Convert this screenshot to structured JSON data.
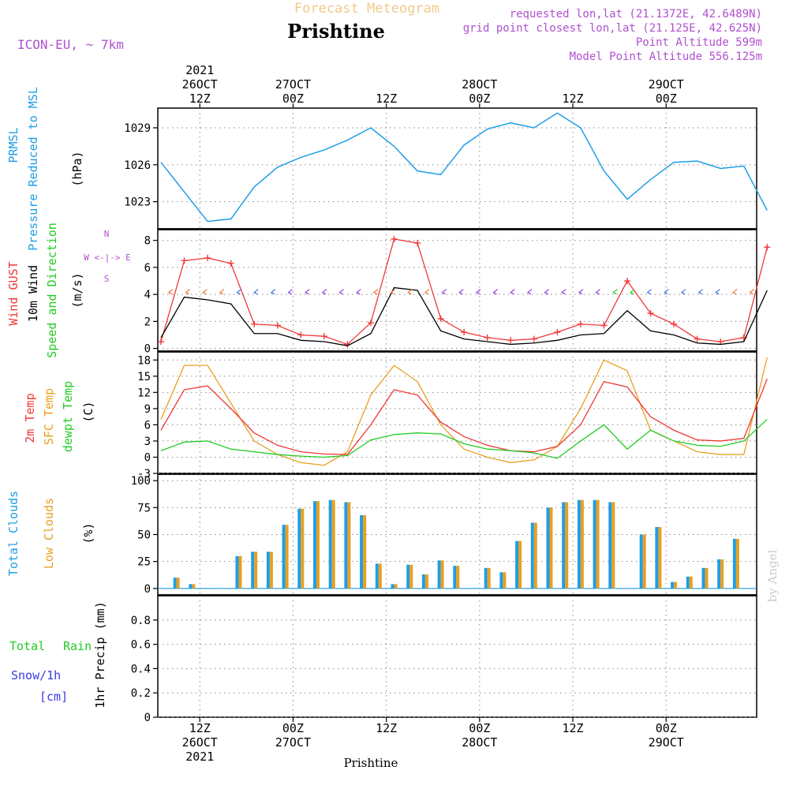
{
  "header": {
    "subtitle": "Forecast Meteogram",
    "title": "Prishtine",
    "model": "ICON-EU, ~ 7km",
    "requested": "requested lon,lat (21.1372E, 42.6489N)",
    "gridpoint": "grid point closest lon,lat (21.125E, 42.625N)",
    "point_alt": "Point Altitude 599m",
    "model_alt": "Model Point Altitude 556.125m",
    "watermark": "by Angel",
    "footer": "Prishtine"
  },
  "colors": {
    "pressure": "#1e9ee6",
    "gust": "#f03838",
    "wind": "#000000",
    "temp2m": "#f03838",
    "sfc": "#e8a020",
    "dew": "#22cc22",
    "total_cloud": "#1e9ee6",
    "low_cloud": "#e8a020",
    "rain": "#22cc22",
    "snow": "#3a3ae8",
    "meta": "#b050d0"
  },
  "axis_labels": {
    "pressure": [
      "PRMSL",
      "Pressure Reduced to MSL",
      "(hPa)"
    ],
    "wind": [
      "Wind GUST",
      "10m Wind",
      "Speed and Direction",
      "(m/s)"
    ],
    "compass": [
      "N",
      "W <-|-> E",
      "S"
    ],
    "temp": [
      "2m Temp",
      "SFC Temp",
      "dewpt Temp",
      "(C)"
    ],
    "cloud": [
      "Total Clouds",
      "Low Clouds",
      "(%)"
    ],
    "precip": [
      "Total",
      "Rain",
      "Snow/1h",
      "[cm]",
      "1hr Precip (mm)"
    ]
  },
  "time_axis": {
    "top": [
      [
        "2021",
        "26OCT",
        "12Z"
      ],
      [
        "27OCT",
        "00Z"
      ],
      [
        "12Z"
      ],
      [
        "28OCT",
        "00Z"
      ],
      [
        "12Z"
      ],
      [
        "29OCT",
        "00Z"
      ]
    ],
    "bottom": [
      [
        "12Z",
        "26OCT",
        "2021"
      ],
      [
        "00Z",
        "27OCT"
      ],
      [
        "12Z"
      ],
      [
        "00Z",
        "28OCT"
      ],
      [
        "12Z"
      ],
      [
        "00Z",
        "29OCT"
      ]
    ]
  },
  "chart_data": [
    {
      "type": "line",
      "title": "PRMSL Pressure Reduced to MSL",
      "ylabel": "(hPa)",
      "ylim": [
        1020.8,
        1030.6
      ],
      "yticks": [
        1023,
        1026,
        1029
      ],
      "x": [
        0,
        3,
        6,
        9,
        12,
        15,
        18,
        21,
        24,
        27,
        30,
        33,
        36,
        39,
        42,
        45,
        48,
        51,
        54,
        57,
        60,
        63,
        66,
        69,
        72,
        75,
        78
      ],
      "series": [
        {
          "name": "PRMSL",
          "values": [
            1026.2,
            1023.8,
            1021.4,
            1021.6,
            1024.2,
            1025.8,
            1026.6,
            1027.2,
            1028.0,
            1029.0,
            1027.5,
            1025.5,
            1025.2,
            1027.6,
            1028.9,
            1029.4,
            1029.0,
            1030.2,
            1029.0,
            1025.5,
            1023.2,
            1024.8,
            1026.2,
            1026.3,
            1025.7,
            1025.9,
            1022.3
          ]
        }
      ],
      "grid": true
    },
    {
      "type": "line",
      "title": "Wind GUST / 10m Wind Speed and Direction",
      "ylabel": "(m/s)",
      "ylim": [
        -0.2,
        8.8
      ],
      "yticks": [
        0,
        2,
        4,
        6,
        8
      ],
      "x": [
        0,
        3,
        6,
        9,
        12,
        15,
        18,
        21,
        24,
        27,
        30,
        33,
        36,
        39,
        42,
        45,
        48,
        51,
        54,
        57,
        60,
        63,
        66,
        69,
        72,
        75,
        78
      ],
      "series": [
        {
          "name": "Wind GUST",
          "values": [
            0.5,
            6.5,
            6.7,
            6.3,
            1.8,
            1.7,
            1.0,
            0.9,
            0.3,
            1.9,
            8.1,
            7.8,
            2.2,
            1.2,
            0.8,
            0.6,
            0.7,
            1.2,
            1.8,
            1.7,
            5.0,
            2.6,
            1.8,
            0.7,
            0.5,
            0.8,
            7.5
          ]
        },
        {
          "name": "10m Wind",
          "values": [
            0.8,
            3.8,
            3.6,
            3.3,
            1.1,
            1.1,
            0.6,
            0.5,
            0.2,
            1.1,
            4.5,
            4.3,
            1.3,
            0.7,
            0.5,
            0.3,
            0.4,
            0.6,
            1.0,
            1.1,
            2.8,
            1.3,
            1.0,
            0.4,
            0.3,
            0.5,
            4.3
          ]
        }
      ],
      "grid": true
    },
    {
      "type": "line",
      "title": "2m Temp / SFC Temp / dewpt Temp",
      "ylabel": "(C)",
      "ylim": [
        -3,
        19.5
      ],
      "yticks": [
        -3,
        0,
        3,
        6,
        9,
        12,
        15,
        18
      ],
      "x": [
        0,
        3,
        6,
        9,
        12,
        15,
        18,
        21,
        24,
        27,
        30,
        33,
        36,
        39,
        42,
        45,
        48,
        51,
        54,
        57,
        60,
        63,
        66,
        69,
        72,
        75,
        78
      ],
      "series": [
        {
          "name": "2m Temp",
          "values": [
            5.0,
            12.5,
            13.2,
            9.0,
            4.5,
            2.2,
            1.0,
            0.6,
            0.5,
            6.0,
            12.5,
            11.5,
            6.5,
            3.8,
            2.2,
            1.2,
            1.0,
            2.0,
            6.0,
            14.0,
            13.0,
            7.5,
            5.0,
            3.2,
            3.0,
            3.5,
            14.5
          ]
        },
        {
          "name": "SFC Temp",
          "values": [
            7.0,
            17.0,
            17.0,
            10.0,
            3.0,
            0.5,
            -1.0,
            -1.5,
            1.0,
            11.5,
            17.0,
            14.0,
            6.0,
            1.5,
            0.0,
            -1.0,
            -0.5,
            2.0,
            9.0,
            18.0,
            16.0,
            5.0,
            3.0,
            1.0,
            0.5,
            0.5,
            18.5
          ]
        },
        {
          "name": "dewpt Temp",
          "values": [
            1.2,
            2.8,
            3.0,
            1.5,
            1.0,
            0.5,
            0.2,
            0.0,
            0.3,
            3.2,
            4.2,
            4.5,
            4.3,
            2.5,
            1.5,
            1.2,
            0.8,
            -0.2,
            3.0,
            6.0,
            1.5,
            5.0,
            3.0,
            2.2,
            2.0,
            3.0,
            7.0
          ]
        }
      ],
      "grid": true
    },
    {
      "type": "bar",
      "title": "Total Clouds / Low Clouds",
      "ylabel": "(%)",
      "ylim": [
        -6,
        106
      ],
      "yticks": [
        0,
        25,
        50,
        75,
        100
      ],
      "x": [
        1,
        2,
        5,
        6,
        7,
        8,
        9,
        10,
        11,
        12,
        13,
        14,
        15,
        16,
        17,
        18,
        19,
        21,
        22,
        23,
        24,
        25,
        26,
        27,
        28,
        29,
        31,
        32,
        33,
        34,
        35,
        36,
        37
      ],
      "series": [
        {
          "name": "Total Clouds",
          "values": [
            10,
            4,
            30,
            34,
            34,
            59,
            74,
            81,
            82,
            80,
            68,
            23,
            4,
            22,
            13,
            26,
            21,
            19,
            15,
            44,
            61,
            75,
            80,
            82,
            82,
            80,
            50,
            57,
            6,
            11,
            19,
            27,
            46
          ]
        },
        {
          "name": "Low Clouds",
          "values": [
            10,
            4,
            30,
            34,
            34,
            59,
            74,
            81,
            82,
            80,
            68,
            23,
            4,
            22,
            13,
            26,
            21,
            19,
            15,
            44,
            61,
            75,
            80,
            82,
            82,
            80,
            50,
            57,
            6,
            11,
            19,
            27,
            46
          ]
        }
      ],
      "grid": true
    },
    {
      "type": "bar",
      "title": "Total Rain / Snow/1h",
      "ylabel": "1hr Precip (mm)",
      "ylim": [
        0,
        1.0
      ],
      "yticks": [
        0,
        0.2,
        0.4,
        0.6,
        0.8
      ],
      "series": [],
      "grid": true
    }
  ]
}
